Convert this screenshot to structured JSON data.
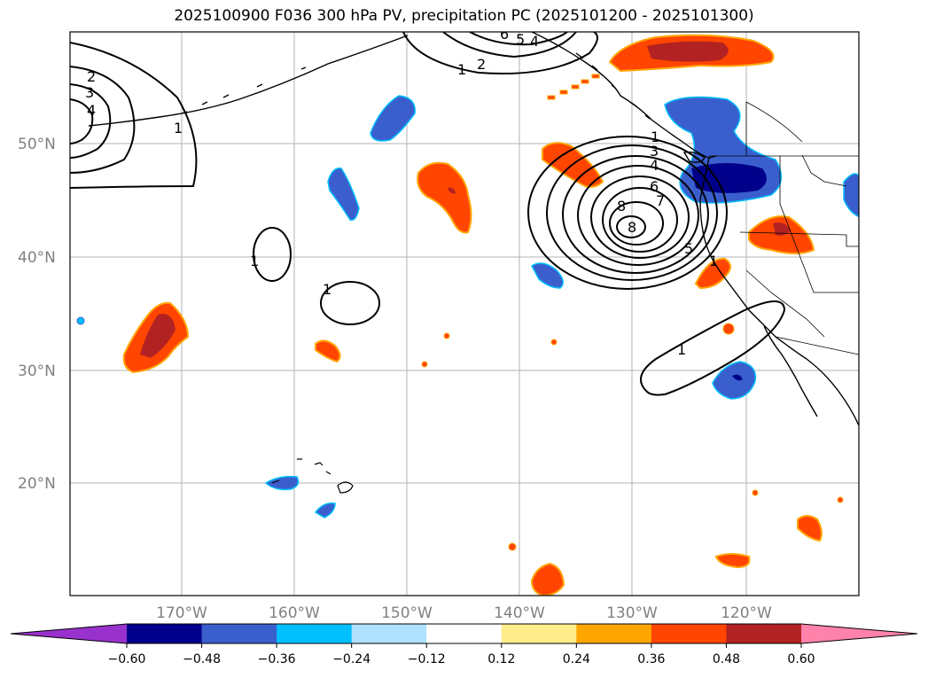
{
  "title": "2025100900 F036 300 hPa PV, precipitation PC (2025101200 - 2025101300)",
  "map": {
    "lat_labels": [
      "50°N",
      "40°N",
      "30°N",
      "20°N"
    ],
    "lon_labels": [
      "170°W",
      "160°W",
      "150°W",
      "140°W",
      "130°W",
      "120°W"
    ],
    "contour_labels": [
      "1",
      "2",
      "3",
      "4",
      "1",
      "1",
      "1",
      "1",
      "2",
      "3",
      "4",
      "5",
      "6",
      "7",
      "8",
      "1",
      "1",
      "4",
      "5",
      "6"
    ]
  },
  "colorbar": {
    "colors": [
      "#9932CC",
      "#00008B",
      "#3A5FCD",
      "#00BFFF",
      "#B0E2FF",
      "#FFFFFF",
      "#FFEC8B",
      "#FFA500",
      "#FF4500",
      "#B22222",
      "#FF82AB"
    ],
    "ticks": [
      "−0.60",
      "−0.48",
      "−0.36",
      "−0.24",
      "−0.12",
      "0.12",
      "0.24",
      "0.36",
      "0.48",
      "0.60"
    ]
  }
}
